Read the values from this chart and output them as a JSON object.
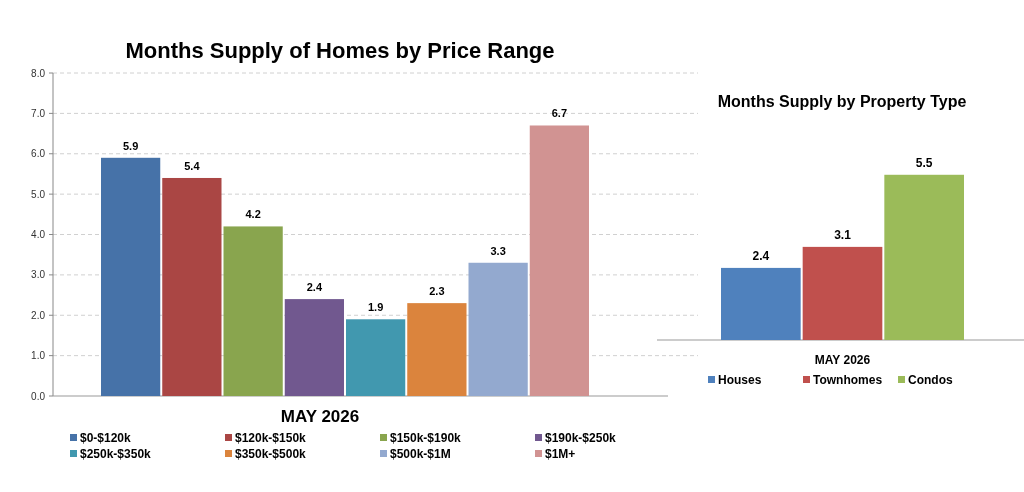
{
  "chart_data": [
    {
      "type": "bar",
      "title": "Months Supply of Homes by Price Range",
      "xlabel": "MAY 2026",
      "categories": [
        null
      ],
      "series": [
        {
          "name": "$0-$120k",
          "color": "#4672a8",
          "values": [
            5.9
          ]
        },
        {
          "name": "$120k-$150k",
          "color": "#aa4644",
          "values": [
            5.4
          ]
        },
        {
          "name": "$150k-$190k",
          "color": "#89a54e",
          "values": [
            4.2
          ]
        },
        {
          "name": "$190k-$250k",
          "color": "#71588f",
          "values": [
            2.4
          ]
        },
        {
          "name": "$250k-$350k",
          "color": "#4198af",
          "values": [
            1.9
          ]
        },
        {
          "name": "$350k-$500k",
          "color": "#db843d",
          "values": [
            2.3
          ]
        },
        {
          "name": "$500k-$1M",
          "color": "#93a9cf",
          "values": [
            3.3
          ]
        },
        {
          "name": "$1M+",
          "color": "#d19392",
          "values": [
            6.7
          ]
        }
      ],
      "ylim": [
        0,
        8
      ],
      "yticks": [
        {
          "value": 0,
          "label": "0.0"
        },
        {
          "value": 1,
          "label": "1.0"
        },
        {
          "value": 2,
          "label": "2.0"
        },
        {
          "value": 3,
          "label": "3.0"
        },
        {
          "value": 4,
          "label": "4.0"
        },
        {
          "value": 5,
          "label": "5.0"
        },
        {
          "value": 6,
          "label": "6.0"
        },
        {
          "value": 7,
          "label": "7.0"
        },
        {
          "value": 8,
          "label": "8.0"
        }
      ],
      "grid": "y",
      "legend": "bottom",
      "data_labels": true
    },
    {
      "type": "bar",
      "title": "Months Supply by Property Type",
      "xlabel": "MAY 2026",
      "categories": [
        null
      ],
      "series": [
        {
          "name": "Houses",
          "color": "#4f81bd",
          "values": [
            2.4
          ]
        },
        {
          "name": "Townhomes",
          "color": "#c0504d",
          "values": [
            3.1
          ]
        },
        {
          "name": "Condos",
          "color": "#9bbb59",
          "values": [
            5.5
          ]
        }
      ],
      "legend": "bottom",
      "data_labels": true
    }
  ]
}
